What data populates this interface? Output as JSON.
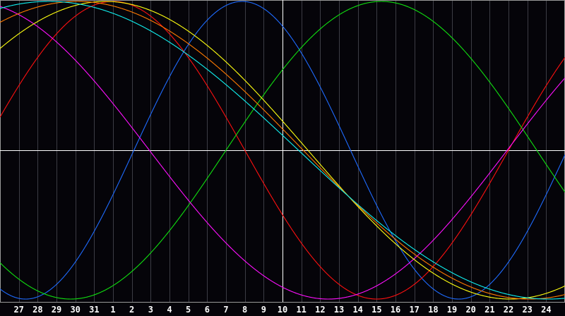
{
  "chart_data": {
    "type": "line",
    "title": "",
    "xlabel": "",
    "ylabel": "",
    "ylim": [
      -1,
      1
    ],
    "grid": true,
    "legend": "none",
    "today_label": "10",
    "categories": [
      "27",
      "28",
      "29",
      "30",
      "31",
      "1",
      "2",
      "3",
      "4",
      "5",
      "6",
      "7",
      "8",
      "9",
      "10",
      "11",
      "12",
      "13",
      "14",
      "15",
      "16",
      "17",
      "18",
      "19",
      "20",
      "21",
      "22",
      "23",
      "24"
    ],
    "series": [
      {
        "color": "#1e6bff",
        "period_days": 23,
        "peak_at_label_offset": 11.86
      },
      {
        "color": "#ff1010",
        "period_days": 28,
        "peak_at_label_offset": 5.0
      },
      {
        "color": "#10e010",
        "period_days": 33,
        "peak_at_label_offset": 19.25
      },
      {
        "color": "#ff10ff",
        "period_days": 38,
        "peak_at_label_offset": -2.57
      },
      {
        "color": "#ffff10",
        "period_days": 43,
        "peak_at_label_offset": 4.6
      },
      {
        "color": "#ff7a00",
        "period_days": 48,
        "peak_at_label_offset": 3.1
      },
      {
        "color": "#10f0f0",
        "period_days": 53,
        "peak_at_label_offset": 1.6
      }
    ]
  }
}
